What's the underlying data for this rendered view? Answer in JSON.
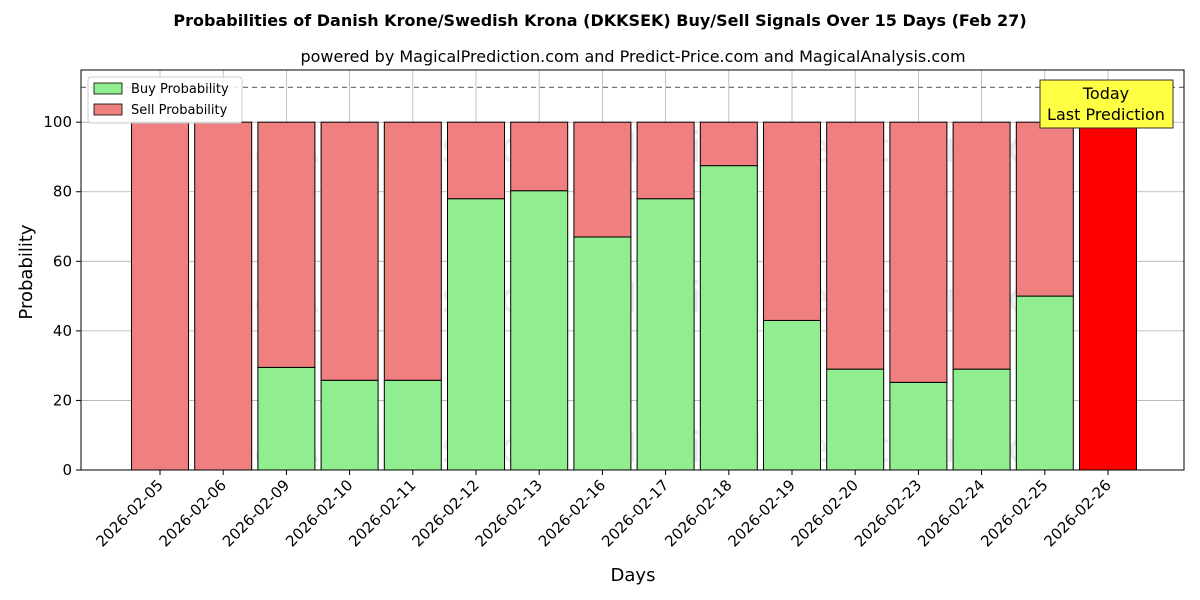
{
  "chart_data": {
    "type": "bar",
    "stacked": true,
    "title": "Probabilities of Danish Krone/Swedish Krona (DKKSEK) Buy/Sell Signals Over 15 Days (Feb 27)",
    "subtitle": "powered by MagicalPrediction.com and Predict-Price.com and MagicalAnalysis.com",
    "xlabel": "Days",
    "ylabel": "Probability",
    "ylim": [
      0,
      115
    ],
    "yticks": [
      0,
      20,
      40,
      60,
      80,
      100
    ],
    "reference_line": 110,
    "grid": true,
    "legend_position": "top-left",
    "categories": [
      "2026-02-05",
      "2026-02-06",
      "2026-02-09",
      "2026-02-10",
      "2026-02-11",
      "2026-02-12",
      "2026-02-13",
      "2026-02-16",
      "2026-02-17",
      "2026-02-18",
      "2026-02-19",
      "2026-02-20",
      "2026-02-23",
      "2026-02-24",
      "2026-02-25",
      "2026-02-26"
    ],
    "series": [
      {
        "name": "Buy Probability",
        "color": "#90ee90",
        "values": [
          0,
          0,
          29.5,
          25.8,
          25.8,
          78,
          80.3,
          67,
          78,
          87.5,
          43,
          29,
          25.2,
          29,
          50,
          0
        ]
      },
      {
        "name": "Sell Probability",
        "color": "#f08080",
        "values": [
          100,
          100,
          70.5,
          74.2,
          74.2,
          22,
          19.7,
          33,
          22,
          12.5,
          57,
          71,
          74.8,
          71,
          50,
          100
        ]
      }
    ],
    "highlight": {
      "index": 15,
      "color": "#ff0000"
    },
    "annotation": {
      "line1": "Today",
      "line2": "Last Prediction",
      "background": "#ffff44"
    },
    "watermarks": [
      "MagicalAnalysis.com",
      "MagicalPrediction.com"
    ]
  }
}
